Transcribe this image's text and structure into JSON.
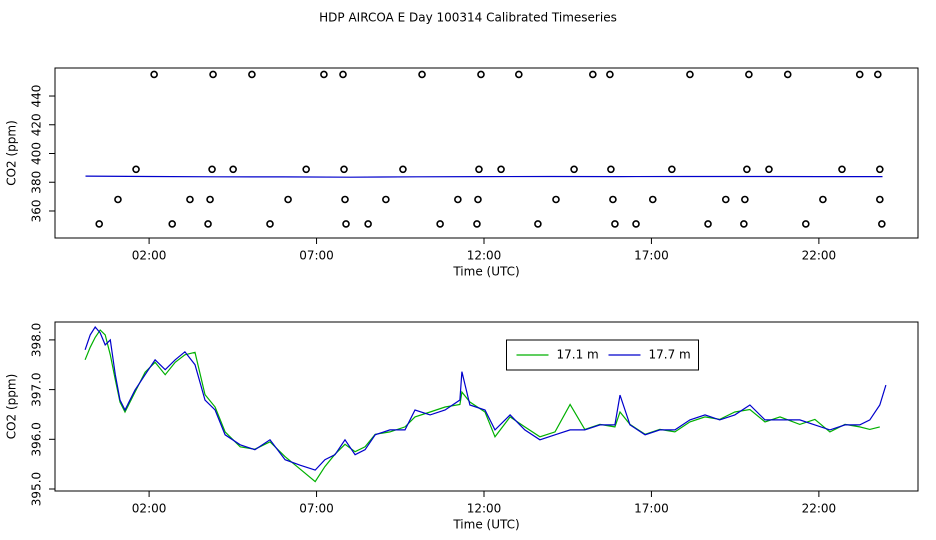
{
  "chart_data": [
    {
      "type": "scatter",
      "title": "HDP AIRCOA E  Day 100314  Calibrated Timeseries",
      "x_label": "Time (UTC)",
      "y_label": "CO2 (ppm)",
      "xlim": [
        -0.81,
        24.96
      ],
      "xticks": [
        {
          "value": 2,
          "label": "02:00"
        },
        {
          "value": 7,
          "label": "07:00"
        },
        {
          "value": 12,
          "label": "12:00"
        },
        {
          "value": 17,
          "label": "17:00"
        },
        {
          "value": 22,
          "label": "22:00"
        }
      ],
      "ylim": [
        341.2,
        459.5
      ],
      "yticks": [
        360,
        380,
        400,
        420,
        440
      ],
      "series": [
        {
          "style": "points",
          "color": "#000000",
          "x": [
            2.15,
            3.91,
            5.07,
            7.22,
            7.79,
            10.15,
            11.91,
            13.04,
            15.25,
            15.76,
            18.15,
            19.91,
            21.07,
            23.22,
            23.76,
            1.61,
            3.88,
            4.51,
            6.69,
            7.82,
            9.58,
            11.85,
            12.51,
            14.69,
            15.79,
            17.61,
            19.85,
            20.51,
            22.69,
            23.82,
            1.07,
            3.22,
            3.82,
            6.15,
            7.85,
            9.07,
            11.22,
            11.82,
            14.15,
            15.85,
            17.04,
            19.22,
            19.79,
            22.12,
            23.82,
            0.51,
            2.69,
            3.76,
            5.61,
            7.88,
            8.54,
            10.69,
            11.79,
            13.61,
            15.91,
            16.54,
            18.69,
            19.76,
            21.61,
            23.88
          ],
          "values": [
            455,
            455,
            455,
            455,
            455,
            455,
            455,
            455,
            455,
            455,
            455,
            455,
            455,
            455,
            455,
            389,
            389,
            389,
            389,
            389,
            389,
            389,
            389,
            389,
            389,
            389,
            389,
            389,
            389,
            389,
            368,
            368,
            368,
            368,
            368,
            368,
            368,
            368,
            368,
            368,
            368,
            368,
            368,
            368,
            368,
            351,
            351,
            351,
            351,
            351,
            351,
            351,
            351,
            351,
            351,
            351,
            351,
            351,
            351,
            351
          ]
        },
        {
          "style": "line",
          "color": "#0000cc",
          "x": [
            0.1,
            2,
            4,
            6,
            8,
            10,
            12,
            14,
            16,
            18,
            20,
            22,
            23.9
          ],
          "values": [
            384.3,
            384.0,
            383.8,
            383.7,
            383.5,
            383.8,
            383.9,
            384.0,
            383.9,
            384.0,
            384.0,
            383.9,
            383.9
          ]
        }
      ]
    },
    {
      "type": "line",
      "x_label": "Time (UTC)",
      "y_label": "CO2 (ppm)",
      "xlim": [
        -0.81,
        24.96
      ],
      "xticks": [
        {
          "value": 2,
          "label": "02:00"
        },
        {
          "value": 7,
          "label": "07:00"
        },
        {
          "value": 12,
          "label": "12:00"
        },
        {
          "value": 17,
          "label": "17:00"
        },
        {
          "value": 22,
          "label": "22:00"
        }
      ],
      "ylim": [
        394.96,
        398.36
      ],
      "yticks": [
        {
          "value": 395,
          "label": "395.0"
        },
        {
          "value": 396,
          "label": "396.0"
        },
        {
          "value": 397,
          "label": "397.0"
        },
        {
          "value": 398,
          "label": "398.0"
        }
      ],
      "legend": "top",
      "x": [
        0.09,
        0.24,
        0.39,
        0.54,
        0.69,
        0.84,
        0.99,
        1.13,
        1.28,
        1.58,
        1.88,
        2.18,
        2.48,
        2.78,
        3.07,
        3.37,
        3.67,
        3.97,
        4.27,
        4.72,
        5.16,
        5.61,
        6.06,
        6.51,
        6.96,
        7.25,
        7.55,
        7.85,
        8.15,
        8.45,
        8.75,
        9.19,
        9.64,
        9.94,
        10.39,
        10.84,
        11.28,
        11.34,
        11.58,
        12.03,
        12.33,
        12.78,
        13.22,
        13.67,
        14.12,
        14.57,
        15.01,
        15.46,
        15.91,
        16.06,
        16.36,
        16.81,
        17.25,
        17.7,
        18.15,
        18.6,
        19.04,
        19.49,
        19.94,
        20.39,
        20.84,
        21.43,
        21.88,
        22.33,
        22.78,
        23.22,
        23.52,
        23.82,
        24.0
      ],
      "series": [
        {
          "name": "17.1 m",
          "color": "#00b000",
          "values": [
            397.6,
            397.85,
            398.05,
            398.2,
            398.1,
            397.7,
            397.2,
            396.75,
            396.55,
            396.95,
            397.35,
            397.55,
            397.3,
            397.55,
            397.7,
            397.75,
            396.9,
            396.65,
            396.15,
            395.85,
            395.8,
            395.95,
            395.65,
            395.4,
            395.15,
            395.45,
            395.7,
            395.9,
            395.75,
            395.85,
            396.1,
            396.15,
            396.25,
            396.45,
            396.55,
            396.65,
            396.7,
            396.95,
            396.75,
            396.55,
            396.05,
            396.45,
            396.25,
            396.05,
            396.15,
            396.7,
            396.2,
            396.3,
            396.25,
            396.55,
            396.3,
            396.1,
            396.2,
            396.15,
            396.35,
            396.45,
            396.4,
            396.55,
            396.6,
            396.35,
            396.45,
            396.3,
            396.4,
            396.15,
            396.3,
            396.25,
            396.2,
            396.25,
            null
          ]
        },
        {
          "name": "17.7 m",
          "color": "#0000cc",
          "values": [
            397.8,
            398.1,
            398.26,
            398.14,
            397.9,
            398.0,
            397.3,
            396.79,
            396.59,
            396.99,
            397.3,
            397.6,
            397.4,
            397.6,
            397.76,
            397.5,
            396.79,
            396.59,
            396.09,
            395.89,
            395.79,
            395.99,
            395.59,
            395.48,
            395.38,
            395.59,
            395.69,
            395.99,
            395.69,
            395.79,
            396.09,
            396.19,
            396.19,
            396.59,
            396.49,
            396.59,
            396.79,
            397.36,
            396.69,
            396.59,
            396.19,
            396.49,
            396.19,
            395.99,
            396.09,
            396.19,
            396.19,
            396.29,
            396.29,
            396.89,
            396.29,
            396.09,
            396.19,
            396.19,
            396.39,
            396.49,
            396.39,
            396.49,
            396.69,
            396.39,
            396.39,
            396.39,
            396.29,
            396.19,
            396.29,
            396.29,
            396.39,
            396.69,
            397.09
          ]
        }
      ]
    }
  ]
}
